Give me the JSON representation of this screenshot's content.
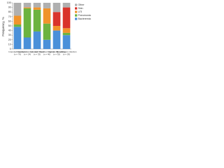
{
  "chart_data": {
    "type": "stacked_bar",
    "y_label": "Frequency, %",
    "categories": [
      "Intended treatment (n = 76)",
      "Intended planned med (n = 24)",
      "Intended blood (n = 32)",
      "Intended vaginal (n = 40)",
      "Community setting (n = 52)",
      "Bloodstream infection (n = 20)"
    ],
    "series": [
      {
        "name": "Bacteremia",
        "color": "#4a90d9",
        "values": [
          48,
          25,
          38,
          20,
          40,
          30
        ]
      },
      {
        "name": "Pneumonia",
        "color": "#6cb33f",
        "values": [
          5,
          63,
          47,
          35,
          0,
          5
        ]
      },
      {
        "name": "UTI",
        "color": "#f0932b",
        "values": [
          19,
          2,
          5,
          33,
          10,
          10
        ]
      },
      {
        "name": "Skin",
        "color": "#d9342b",
        "values": [
          0,
          0,
          0,
          0,
          30,
          45
        ]
      },
      {
        "name": "Other",
        "color": "#b0b0b0",
        "values": [
          28,
          10,
          10,
          12,
          20,
          10
        ]
      }
    ],
    "ylim": [
      0,
      100
    ],
    "yticks": [
      0,
      10,
      20,
      30,
      40,
      50,
      60,
      70,
      80,
      90,
      100
    ],
    "legend": "right"
  }
}
